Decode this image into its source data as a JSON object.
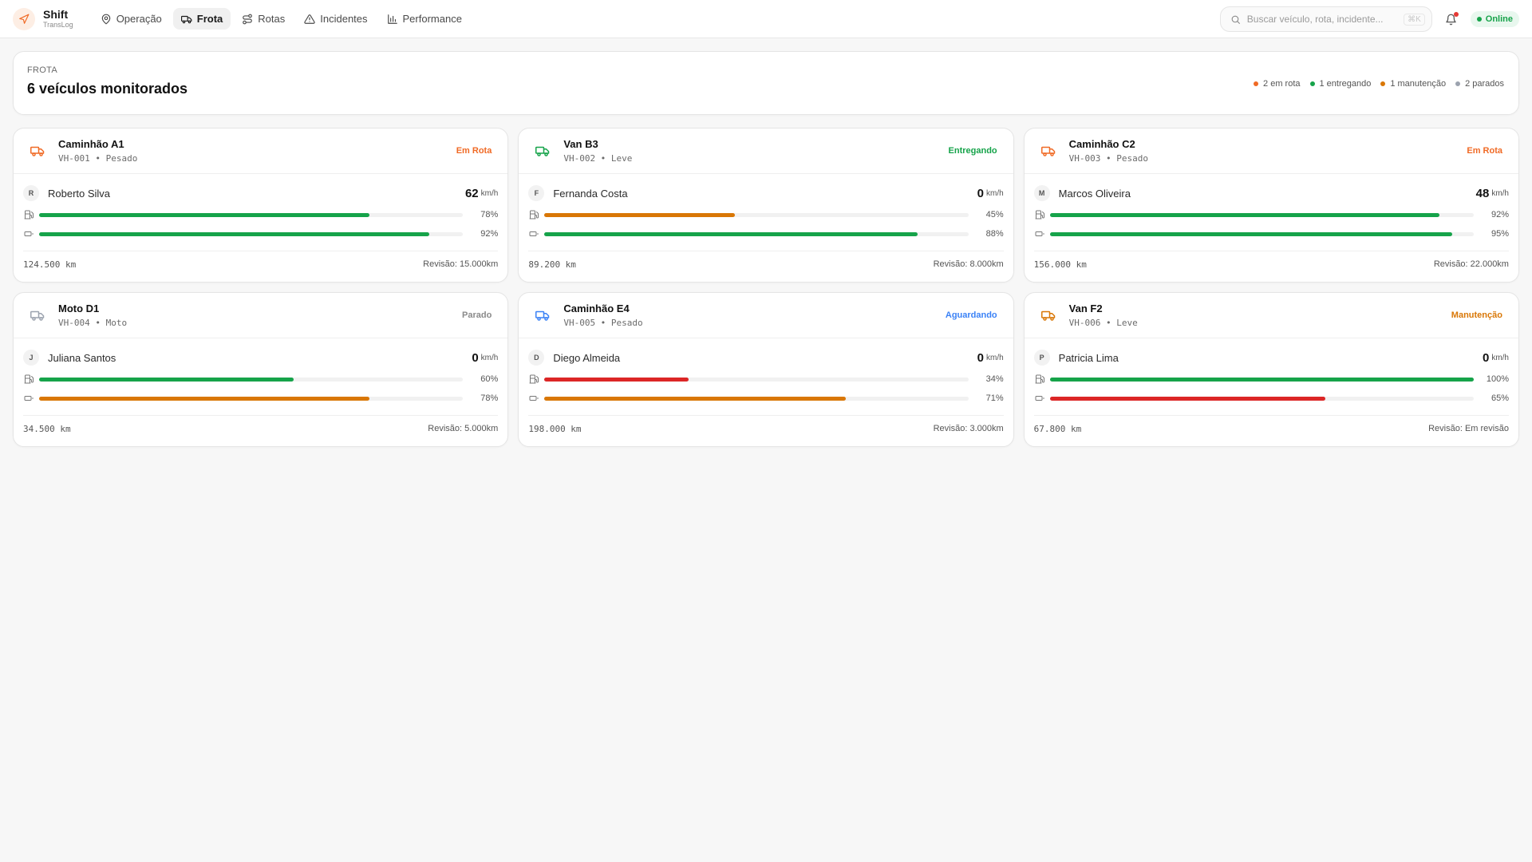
{
  "brand": {
    "name": "Shift",
    "sub": "TransLog"
  },
  "nav": [
    {
      "label": "Operação",
      "icon": "map-pin-icon",
      "active": false
    },
    {
      "label": "Frota",
      "icon": "truck-icon",
      "active": true
    },
    {
      "label": "Rotas",
      "icon": "route-icon",
      "active": false
    },
    {
      "label": "Incidentes",
      "icon": "alert-triangle-icon",
      "active": false
    },
    {
      "label": "Performance",
      "icon": "bar-chart-icon",
      "active": false
    }
  ],
  "search": {
    "placeholder": "Buscar veículo, rota, incidente...",
    "shortcut": "⌘K"
  },
  "status_pill": "Online",
  "colors": {
    "orange": "#f06a25",
    "green": "#16a34a",
    "amber": "#d97706",
    "gray": "#9ca3af",
    "blue": "#3b82f6",
    "red": "#dc2626"
  },
  "summary": {
    "kicker": "FROTA",
    "title": "6 veículos monitorados",
    "legend": [
      {
        "label": "2 em rota",
        "color": "#f06a25"
      },
      {
        "label": "1 entregando",
        "color": "#16a34a"
      },
      {
        "label": "1 manutenção",
        "color": "#d97706"
      },
      {
        "label": "2 parados",
        "color": "#9ca3af"
      }
    ]
  },
  "vehicles": [
    {
      "name": "Caminhão A1",
      "meta": "VH-001 • Pesado",
      "status": "Em Rota",
      "status_color": "#f06a25",
      "icon_color": "#f06a25",
      "driver": "Roberto Silva",
      "initial": "R",
      "speed": "62",
      "speed_unit": "km/h",
      "fuel": 78,
      "fuel_label": "78%",
      "fuel_color": "#16a34a",
      "battery": 92,
      "battery_label": "92%",
      "battery_color": "#16a34a",
      "odometer": "124.500 km",
      "revision": "Revisão: 15.000km"
    },
    {
      "name": "Van B3",
      "meta": "VH-002 • Leve",
      "status": "Entregando",
      "status_color": "#16a34a",
      "icon_color": "#16a34a",
      "driver": "Fernanda Costa",
      "initial": "F",
      "speed": "0",
      "speed_unit": "km/h",
      "fuel": 45,
      "fuel_label": "45%",
      "fuel_color": "#d97706",
      "battery": 88,
      "battery_label": "88%",
      "battery_color": "#16a34a",
      "odometer": "89.200 km",
      "revision": "Revisão: 8.000km"
    },
    {
      "name": "Caminhão C2",
      "meta": "VH-003 • Pesado",
      "status": "Em Rota",
      "status_color": "#f06a25",
      "icon_color": "#f06a25",
      "driver": "Marcos Oliveira",
      "initial": "M",
      "speed": "48",
      "speed_unit": "km/h",
      "fuel": 92,
      "fuel_label": "92%",
      "fuel_color": "#16a34a",
      "battery": 95,
      "battery_label": "95%",
      "battery_color": "#16a34a",
      "odometer": "156.000 km",
      "revision": "Revisão: 22.000km"
    },
    {
      "name": "Moto D1",
      "meta": "VH-004 • Moto",
      "status": "Parado",
      "status_color": "#8a8a8a",
      "icon_color": "#9ca3af",
      "driver": "Juliana Santos",
      "initial": "J",
      "speed": "0",
      "speed_unit": "km/h",
      "fuel": 60,
      "fuel_label": "60%",
      "fuel_color": "#16a34a",
      "battery": 78,
      "battery_label": "78%",
      "battery_color": "#d97706",
      "odometer": "34.500 km",
      "revision": "Revisão: 5.000km"
    },
    {
      "name": "Caminhão E4",
      "meta": "VH-005 • Pesado",
      "status": "Aguardando",
      "status_color": "#3b82f6",
      "icon_color": "#3b82f6",
      "driver": "Diego Almeida",
      "initial": "D",
      "speed": "0",
      "speed_unit": "km/h",
      "fuel": 34,
      "fuel_label": "34%",
      "fuel_color": "#dc2626",
      "battery": 71,
      "battery_label": "71%",
      "battery_color": "#d97706",
      "odometer": "198.000 km",
      "revision": "Revisão: 3.000km"
    },
    {
      "name": "Van F2",
      "meta": "VH-006 • Leve",
      "status": "Manutenção",
      "status_color": "#d97706",
      "icon_color": "#d97706",
      "driver": "Patricia Lima",
      "initial": "P",
      "speed": "0",
      "speed_unit": "km/h",
      "fuel": 100,
      "fuel_label": "100%",
      "fuel_color": "#16a34a",
      "battery": 65,
      "battery_label": "65%",
      "battery_color": "#dc2626",
      "odometer": "67.800 km",
      "revision": "Revisão: Em revisão"
    }
  ]
}
